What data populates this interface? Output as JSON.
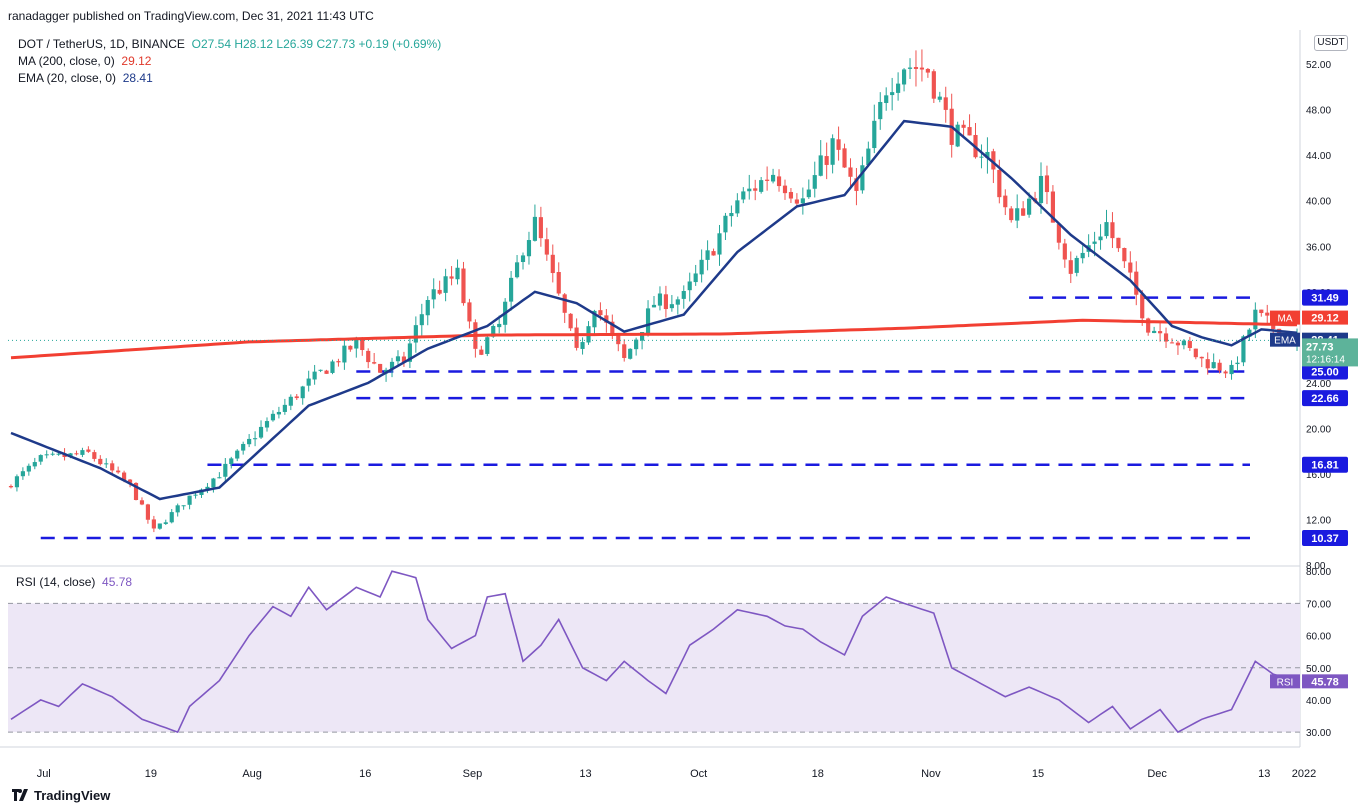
{
  "header": {
    "publisher_line": "ranadagger published on TradingView.com, Dec 31, 2021 11:43 UTC"
  },
  "legend": {
    "symbol": "DOT / TetherUS, 1D, BINANCE",
    "open": "O27.54",
    "high": "H28.12",
    "low": "L26.39",
    "close": "C27.73",
    "change": "+0.19 (+0.69%)",
    "ma_label": "MA (200, close, 0)",
    "ma_value": "29.12",
    "ema_label": "EMA (20, close, 0)",
    "ema_value": "28.41"
  },
  "rsi_legend": {
    "label": "RSI (14, close)",
    "value": "45.78"
  },
  "currency_tag": "USDT",
  "footer": {
    "brand": "TradingView"
  },
  "colors": {
    "up": "#26a69a",
    "down": "#ef5350",
    "ma": "#f23f32",
    "ema": "#1e3a8a",
    "levels": "#1a1adf",
    "rsi": "#7e57c2",
    "rsi_band": "#ede7f6"
  },
  "chart_data": [
    {
      "type": "candlestick",
      "x_labels": [
        "Jul",
        "19",
        "Aug",
        "16",
        "Sep",
        "13",
        "Oct",
        "18",
        "Nov",
        "15",
        "Dec",
        "13",
        "2022"
      ],
      "y_ticks": [
        "52.00",
        "48.00",
        "44.00",
        "40.00",
        "36.00",
        "32.00",
        "28.00",
        "24.00",
        "20.00",
        "16.00",
        "12.00",
        "8.00"
      ],
      "ylim": [
        8,
        55
      ],
      "horizontal_levels": [
        31.49,
        25.0,
        22.66,
        16.81,
        10.37
      ],
      "level_labels": [
        "31.49",
        "25.00",
        "22.66",
        "16.81",
        "10.37"
      ],
      "price_labels": {
        "ma": "29.12",
        "ema": "28.41",
        "last": "27.73",
        "countdown": "12:16:14",
        "ma_tag": "MA",
        "ema_tag": "EMA"
      },
      "anchors": {
        "close": [
          [
            0,
            15.2
          ],
          [
            5,
            17.3
          ],
          [
            13,
            17.8
          ],
          [
            20,
            15.0
          ],
          [
            24,
            11.0
          ],
          [
            30,
            14.0
          ],
          [
            35,
            16.0
          ],
          [
            42,
            20.0
          ],
          [
            50,
            24.0
          ],
          [
            58,
            27.5
          ],
          [
            62,
            25.0
          ],
          [
            66,
            26.0
          ],
          [
            70,
            31.5
          ],
          [
            75,
            33.5
          ],
          [
            78,
            26.5
          ],
          [
            82,
            29.0
          ],
          [
            86,
            36.0
          ],
          [
            88,
            38.0
          ],
          [
            92,
            31.5
          ],
          [
            95,
            26.5
          ],
          [
            98,
            31.0
          ],
          [
            103,
            26.0
          ],
          [
            108,
            31.0
          ],
          [
            113,
            31.5
          ],
          [
            118,
            36.0
          ],
          [
            122,
            40.0
          ],
          [
            128,
            42.5
          ],
          [
            133,
            40.0
          ],
          [
            138,
            45.0
          ],
          [
            142,
            40.5
          ],
          [
            147,
            50.0
          ],
          [
            150,
            52.0
          ],
          [
            154,
            51.5
          ],
          [
            158,
            46.0
          ],
          [
            164,
            44.0
          ],
          [
            168,
            38.0
          ],
          [
            173,
            41.5
          ],
          [
            178,
            34.0
          ],
          [
            184,
            38.0
          ],
          [
            188,
            33.0
          ],
          [
            191,
            29.0
          ],
          [
            195,
            28.0
          ],
          [
            200,
            26.0
          ],
          [
            205,
            25.0
          ],
          [
            209,
            30.0
          ],
          [
            213,
            28.5
          ],
          [
            216,
            27.7
          ]
        ],
        "ma200": [
          [
            0,
            26.2
          ],
          [
            40,
            27.6
          ],
          [
            80,
            28.2
          ],
          [
            120,
            28.3
          ],
          [
            150,
            28.8
          ],
          [
            180,
            29.5
          ],
          [
            216,
            29.1
          ]
        ],
        "ema20": [
          [
            0,
            19.6
          ],
          [
            15,
            16.5
          ],
          [
            25,
            13.8
          ],
          [
            35,
            14.8
          ],
          [
            50,
            22.0
          ],
          [
            60,
            24.0
          ],
          [
            70,
            27.0
          ],
          [
            80,
            29.0
          ],
          [
            88,
            32.0
          ],
          [
            95,
            31.0
          ],
          [
            103,
            28.5
          ],
          [
            113,
            30.0
          ],
          [
            122,
            35.5
          ],
          [
            132,
            39.5
          ],
          [
            140,
            40.5
          ],
          [
            150,
            47.0
          ],
          [
            158,
            46.5
          ],
          [
            168,
            42.0
          ],
          [
            178,
            37.0
          ],
          [
            188,
            33.0
          ],
          [
            195,
            29.0
          ],
          [
            200,
            28.0
          ],
          [
            205,
            27.3
          ],
          [
            210,
            28.7
          ],
          [
            216,
            28.4
          ]
        ]
      }
    },
    {
      "type": "line",
      "name": "RSI",
      "y_ticks": [
        "80.00",
        "70.00",
        "60.00",
        "50.00",
        "40.00",
        "30.00"
      ],
      "ylim": [
        26,
        81
      ],
      "band": [
        30,
        70
      ],
      "mid": 50,
      "last_label": "45.78",
      "tag": "RSI",
      "anchors": [
        [
          0,
          34
        ],
        [
          5,
          40
        ],
        [
          8,
          38
        ],
        [
          12,
          45
        ],
        [
          17,
          41
        ],
        [
          22,
          34
        ],
        [
          25,
          32
        ],
        [
          28,
          30
        ],
        [
          30,
          38
        ],
        [
          35,
          46
        ],
        [
          40,
          60
        ],
        [
          44,
          69
        ],
        [
          47,
          66
        ],
        [
          50,
          75
        ],
        [
          53,
          68
        ],
        [
          58,
          75
        ],
        [
          62,
          72
        ],
        [
          64,
          80
        ],
        [
          68,
          78
        ],
        [
          70,
          65
        ],
        [
          74,
          56
        ],
        [
          78,
          60
        ],
        [
          80,
          72
        ],
        [
          83,
          73
        ],
        [
          86,
          52
        ],
        [
          89,
          57
        ],
        [
          92,
          65
        ],
        [
          96,
          50
        ],
        [
          100,
          46
        ],
        [
          103,
          52
        ],
        [
          107,
          46
        ],
        [
          110,
          42
        ],
        [
          114,
          57
        ],
        [
          118,
          62
        ],
        [
          122,
          68
        ],
        [
          127,
          66
        ],
        [
          130,
          63
        ],
        [
          133,
          62
        ],
        [
          136,
          58
        ],
        [
          140,
          54
        ],
        [
          143,
          66
        ],
        [
          147,
          72
        ],
        [
          150,
          70
        ],
        [
          155,
          67
        ],
        [
          158,
          50
        ],
        [
          162,
          46
        ],
        [
          167,
          41
        ],
        [
          171,
          44
        ],
        [
          176,
          40
        ],
        [
          181,
          33
        ],
        [
          185,
          38
        ],
        [
          188,
          31
        ],
        [
          193,
          37
        ],
        [
          196,
          30
        ],
        [
          200,
          34
        ],
        [
          205,
          37
        ],
        [
          209,
          52
        ],
        [
          212,
          48
        ],
        [
          216,
          45.78
        ]
      ]
    }
  ]
}
